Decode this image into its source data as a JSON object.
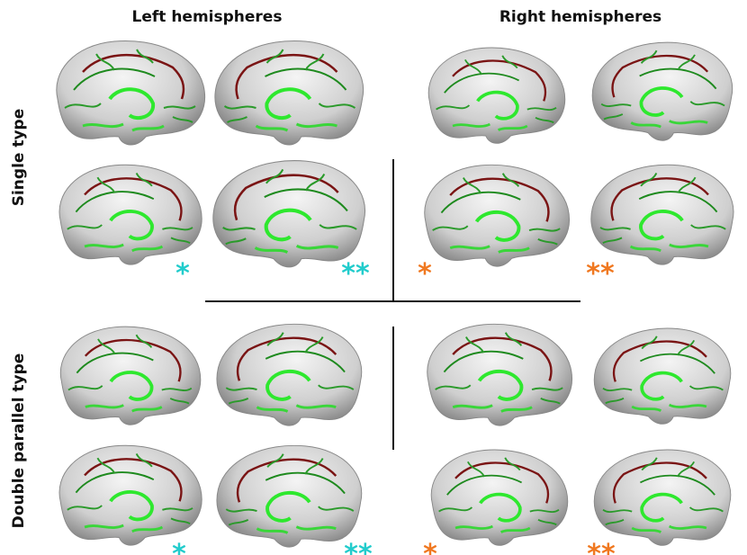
{
  "column_headers": [
    "Left hemispheres",
    "Right hemispheres"
  ],
  "row_labels": [
    "Single type",
    "Double parallel type"
  ],
  "markers": [
    "*",
    "**",
    "*",
    "**",
    "*",
    "**",
    "*",
    "**"
  ]
}
